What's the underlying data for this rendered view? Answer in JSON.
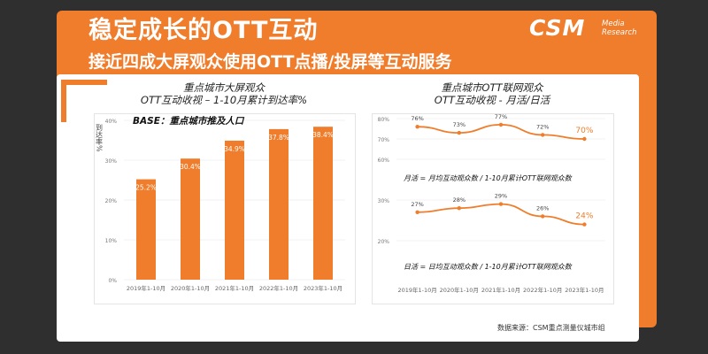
{
  "header": {
    "title": "稳定成长的OTT互动",
    "subtitle": "接近四成大屏观众使用OTT点播/投屏等互动服务"
  },
  "brand": {
    "name": "CSM",
    "tagline_line1": "Media",
    "tagline_line2": "Research"
  },
  "source_note": "数据来源：CSM重点测量仪城市组",
  "colors": {
    "accent": "#ef7d2b",
    "background": "#2f2f2f"
  },
  "chart_data": [
    {
      "type": "bar",
      "title": "重点城市大屏观众",
      "subtitle": "OTT互动收视 – 1-10月累计到达率%",
      "ylabel": "到达率%",
      "annotation": "BASE：重点城市推及人口",
      "categories": [
        "2019年1-10月",
        "2020年1-10月",
        "2021年1-10月",
        "2022年1-10月",
        "2023年1-10月"
      ],
      "values": [
        25.2,
        30.4,
        34.9,
        37.8,
        38.4
      ],
      "value_labels": [
        "25.2%",
        "30.4%",
        "34.9%",
        "37.8%",
        "38.4%"
      ],
      "yticks": [
        "0%",
        "10%",
        "20%",
        "30%",
        "40%"
      ],
      "ylim": [
        0,
        40
      ],
      "color": "#ef7d2b"
    },
    {
      "type": "line",
      "title": "重点城市OTT联网观众",
      "subtitle": "OTT互动收视 - 月活/日活",
      "categories": [
        "2019年1-10月",
        "2020年1-10月",
        "2021年1-10月",
        "2022年1-10月",
        "2023年1-10月"
      ],
      "panels": [
        {
          "label": "月活 = 月均互动观众数 / 1-10月累计OTT联网观众数",
          "values": [
            76,
            73,
            77,
            72,
            70
          ],
          "value_labels": [
            "76%",
            "73%",
            "77%",
            "72%",
            "70%"
          ],
          "yticks": [
            "60%",
            "70%",
            "80%"
          ],
          "ylim": [
            60,
            80
          ]
        },
        {
          "label": "日活 = 日均互动观众数 / 1-10月累计OTT联网观众数",
          "values": [
            27,
            28,
            29,
            26,
            24
          ],
          "value_labels": [
            "27%",
            "28%",
            "29%",
            "26%",
            "24%"
          ],
          "yticks": [
            "20%",
            "30%"
          ],
          "ylim": [
            20,
            30
          ]
        }
      ],
      "color": "#ef7d2b"
    }
  ]
}
